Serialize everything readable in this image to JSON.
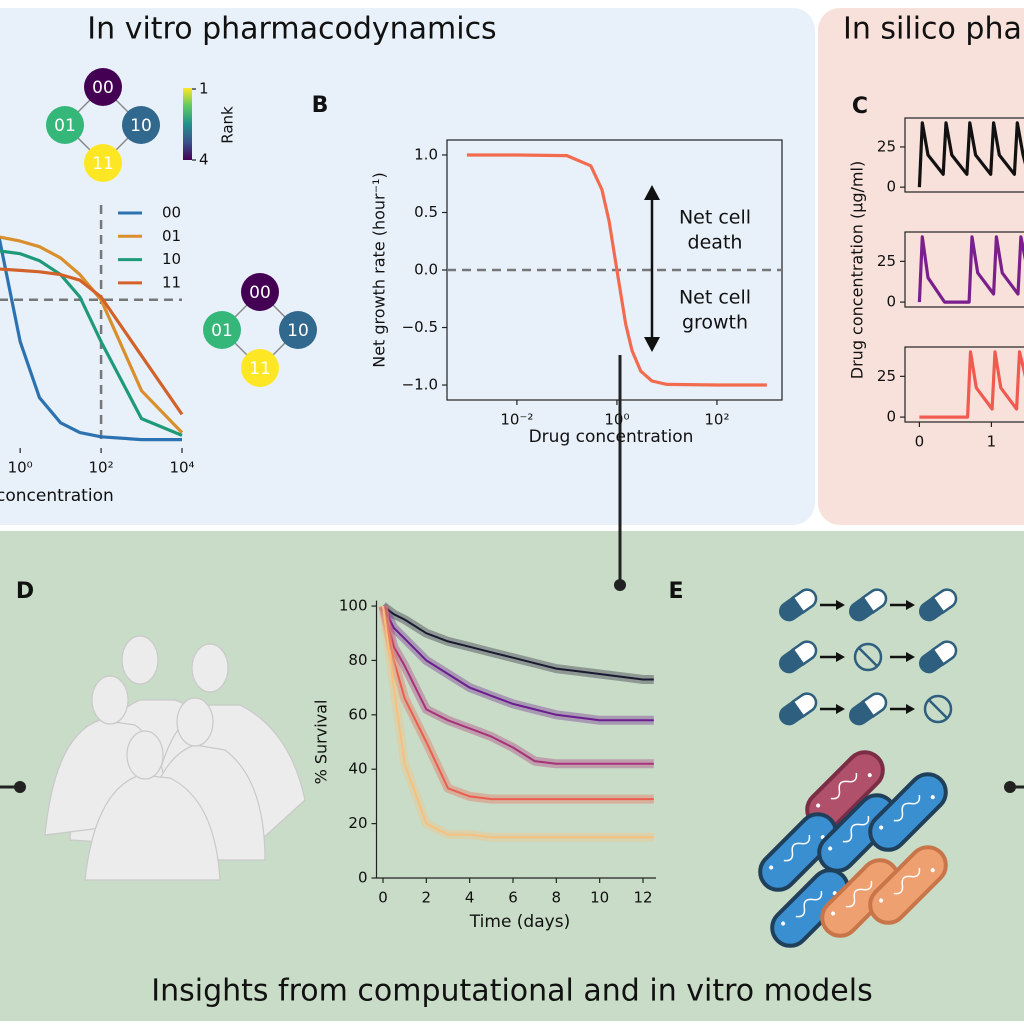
{
  "header": {
    "left_title": "In vitro pharmacodynamics",
    "right_title": "In silico pha"
  },
  "footer": "Insights from computational and in vitro models",
  "panel_letters": [
    "B",
    "C",
    "D",
    "E"
  ],
  "networks": [
    {
      "nodes": [
        "00",
        "01",
        "10",
        "11"
      ],
      "colors": [
        "#440154",
        "#35b779",
        "#31688e",
        "#fde725"
      ]
    },
    {
      "nodes": [
        "00",
        "01",
        "10",
        "11"
      ],
      "colors": [
        "#440154",
        "#35b779",
        "#31688e",
        "#fde725"
      ]
    }
  ],
  "colorbar": {
    "label": "Rank",
    "ticks": [
      1,
      4
    ],
    "lim": [
      1,
      4
    ]
  },
  "chart_data": [
    {
      "type": "line",
      "x_label": "concentration",
      "xscale": "log",
      "xlim": [
        0.3,
        10000
      ],
      "ylim": [
        -1.06,
        1
      ],
      "xticks": [
        {
          "value": 1,
          "label": "10⁰"
        },
        {
          "value": 100,
          "label": "10²"
        },
        {
          "value": 10000,
          "label": "10⁴"
        }
      ],
      "hline": 0,
      "vline": 100,
      "x": [
        0.3,
        1,
        3,
        10,
        30,
        100,
        1000,
        10000
      ],
      "series": [
        {
          "name": "00",
          "color": "#2c72b0",
          "values": [
            0.45,
            -0.3,
            -0.7,
            -0.88,
            -0.95,
            -0.98,
            -1.0,
            -1.0
          ]
        },
        {
          "name": "01",
          "color": "#d98f2b",
          "values": [
            0.45,
            0.42,
            0.38,
            0.3,
            0.18,
            0.0,
            -0.65,
            -0.95
          ]
        },
        {
          "name": "10",
          "color": "#1f9a78",
          "values": [
            0.35,
            0.33,
            0.28,
            0.18,
            0.02,
            -0.3,
            -0.85,
            -0.97
          ]
        },
        {
          "name": "11",
          "color": "#d3622a",
          "values": [
            0.22,
            0.21,
            0.2,
            0.18,
            0.14,
            0.02,
            -0.4,
            -0.82
          ]
        }
      ]
    },
    {
      "type": "line",
      "x_label": "Drug concentration",
      "y_label": "Net growth rate (hour⁻¹)",
      "xscale": "log",
      "xlim": [
        0.0004,
        2000
      ],
      "ylim": [
        -1.13,
        1.13
      ],
      "xticks": [
        {
          "value": 0.01,
          "label": "10⁻²"
        },
        {
          "value": 1,
          "label": "10⁰"
        },
        {
          "value": 100,
          "label": "10²"
        }
      ],
      "yticks": [
        {
          "value": 1,
          "label": "1.0"
        },
        0.5,
        {
          "value": 0,
          "label": "0.0"
        },
        {
          "value": -0.5,
          "label": "−0.5"
        },
        {
          "value": -1,
          "label": "−1.0"
        }
      ],
      "hline": 0,
      "annotations": [
        [
          "Net cell",
          "death"
        ],
        [
          "Net cell",
          "growth"
        ]
      ],
      "x": [
        0.001,
        0.01,
        0.1,
        0.3,
        0.5,
        0.7,
        1,
        1.5,
        2,
        3,
        5,
        10,
        100,
        1000
      ],
      "series": [
        {
          "color": "#f26b4f",
          "values": [
            1.0,
            1.0,
            0.994,
            0.906,
            0.7,
            0.42,
            0,
            -0.47,
            -0.7,
            -0.88,
            -0.965,
            -0.994,
            -1.0,
            -1.0
          ]
        }
      ]
    },
    {
      "type": "line",
      "y_label": "Drug concentration (μg/ml)",
      "xlim": [
        -0.2,
        1.6
      ],
      "ylim": [
        -3,
        43
      ],
      "yticks": [
        0,
        25
      ],
      "x": [
        0,
        0.04,
        0.12,
        0.33,
        0.37,
        0.45,
        0.66,
        0.7,
        0.78,
        0.99,
        1.03,
        1.11,
        1.32,
        1.36,
        1.44,
        1.5
      ],
      "series": [
        {
          "color": "#111111",
          "values": [
            0,
            40,
            20,
            8,
            40,
            20,
            8,
            40,
            20,
            8,
            40,
            20,
            8,
            40,
            20,
            10
          ]
        }
      ]
    },
    {
      "type": "line",
      "xlim": [
        -0.2,
        1.6
      ],
      "ylim": [
        -3,
        43
      ],
      "yticks": [
        0,
        25
      ],
      "x": [
        0,
        0.04,
        0.12,
        0.35,
        0.69,
        0.73,
        0.81,
        1.03,
        1.07,
        1.15,
        1.37,
        1.41,
        1.5
      ],
      "series": [
        {
          "color": "#7a1f8c",
          "values": [
            0,
            40,
            15,
            0,
            0,
            40,
            18,
            5,
            40,
            18,
            5,
            40,
            20
          ]
        }
      ]
    },
    {
      "type": "line",
      "xlim": [
        -0.2,
        1.6
      ],
      "ylim": [
        -3,
        43
      ],
      "yticks": [
        0,
        25
      ],
      "xticks": [
        0,
        1
      ],
      "x": [
        0,
        0.67,
        0.71,
        0.79,
        1.01,
        1.05,
        1.13,
        1.35,
        1.39,
        1.5
      ],
      "series": [
        {
          "color": "#f05a50",
          "values": [
            0,
            0,
            40,
            18,
            5,
            40,
            18,
            5,
            40,
            20
          ]
        }
      ]
    },
    {
      "type": "line",
      "x_label": "Time (days)",
      "y_label": "% Survival",
      "xlim": [
        -0.3,
        12.6
      ],
      "ylim": [
        0,
        102
      ],
      "xticks": [
        0,
        2,
        4,
        6,
        8,
        10,
        12
      ],
      "yticks": [
        0,
        20,
        40,
        60,
        80,
        100
      ],
      "x": [
        0,
        0.5,
        1,
        2,
        3,
        4,
        5,
        6,
        7,
        8,
        9,
        10,
        11,
        12,
        12.5
      ],
      "series": [
        {
          "color": "#1c1a33",
          "values": [
            100,
            97,
            95,
            90,
            87,
            85,
            83,
            81,
            79,
            77,
            76,
            75,
            74,
            73,
            73
          ]
        },
        {
          "color": "#6b1e8e",
          "values": [
            100,
            92,
            88,
            80,
            75,
            70,
            67,
            64,
            62,
            60,
            59,
            58,
            58,
            58,
            58
          ]
        },
        {
          "color": "#a8327a",
          "values": [
            100,
            85,
            78,
            62,
            58,
            55,
            52,
            48,
            43,
            42,
            42,
            42,
            42,
            42,
            42
          ]
        },
        {
          "color": "#ea5e4e",
          "values": [
            100,
            80,
            66,
            50,
            33,
            30,
            29,
            29,
            29,
            29,
            29,
            29,
            29,
            29,
            29
          ]
        },
        {
          "color": "#f6c07e",
          "values": [
            100,
            70,
            42,
            20,
            16,
            16,
            15,
            15,
            15,
            15,
            15,
            15,
            15,
            15,
            15
          ]
        }
      ]
    }
  ]
}
